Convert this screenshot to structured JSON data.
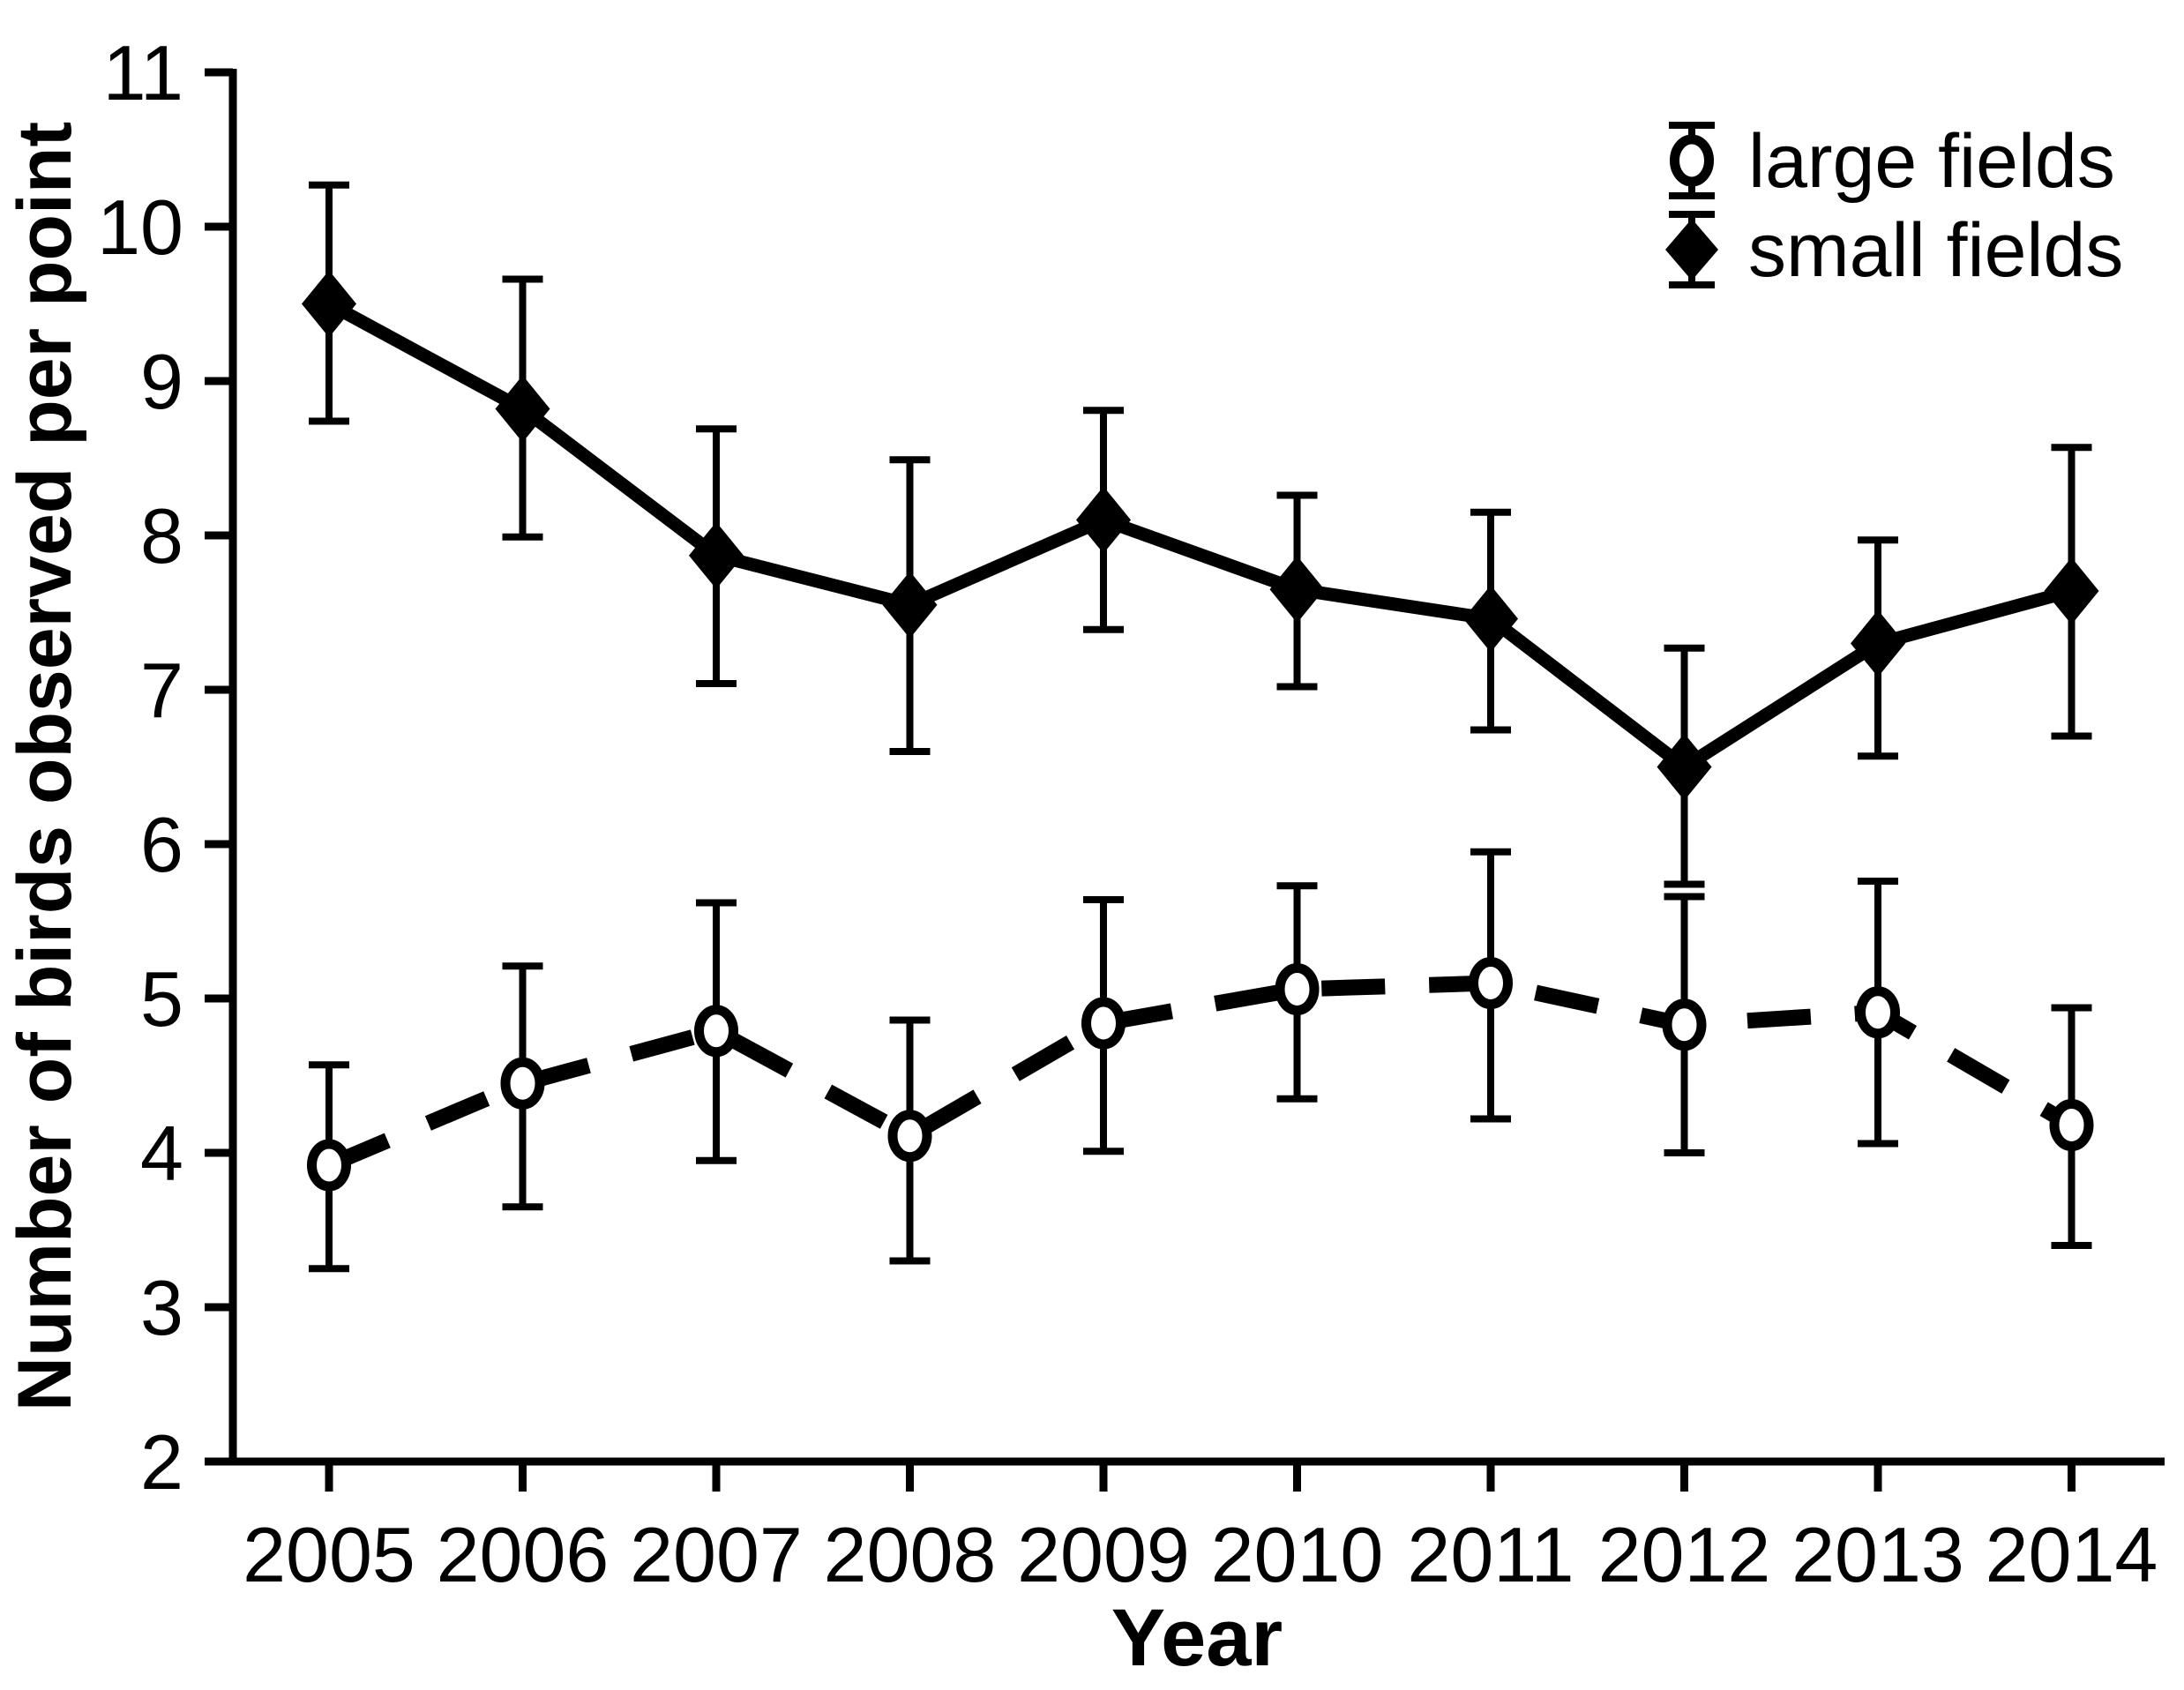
{
  "chart_data": {
    "type": "line",
    "title": "",
    "xlabel": "Year",
    "ylabel": "Number of birds observed per point",
    "categories": [
      "2005",
      "2006",
      "2007",
      "2008",
      "2009",
      "2010",
      "2011",
      "2012",
      "2013",
      "2014"
    ],
    "ylim": [
      2,
      11
    ],
    "yticks": [
      "2",
      "3",
      "4",
      "5",
      "6",
      "7",
      "8",
      "9",
      "10",
      "11"
    ],
    "grid": false,
    "error_bars": true,
    "legend_position": "top-right",
    "colors": {
      "foreground": "#000000",
      "background": "#ffffff"
    },
    "series": [
      {
        "name": "large fields",
        "marker": "open-circle",
        "line_style": "dashed",
        "values": [
          3.92,
          4.45,
          4.79,
          4.11,
          4.84,
          5.06,
          5.1,
          4.83,
          4.91,
          4.18
        ],
        "ci_low": [
          3.25,
          3.65,
          3.95,
          3.3,
          4.01,
          4.35,
          4.22,
          4.0,
          4.06,
          3.4
        ],
        "ci_high": [
          4.57,
          5.21,
          5.62,
          4.86,
          5.64,
          5.73,
          5.95,
          5.66,
          5.76,
          4.94
        ]
      },
      {
        "name": "small fields",
        "marker": "filled-diamond",
        "line_style": "solid",
        "values": [
          9.5,
          8.82,
          7.87,
          7.55,
          8.1,
          7.65,
          7.46,
          6.5,
          7.3,
          7.64
        ],
        "ci_low": [
          8.74,
          7.99,
          7.04,
          6.6,
          7.39,
          7.02,
          6.74,
          5.74,
          6.57,
          6.7
        ],
        "ci_high": [
          10.27,
          9.66,
          8.69,
          8.49,
          8.81,
          8.26,
          8.15,
          7.27,
          7.97,
          8.57
        ]
      }
    ]
  }
}
